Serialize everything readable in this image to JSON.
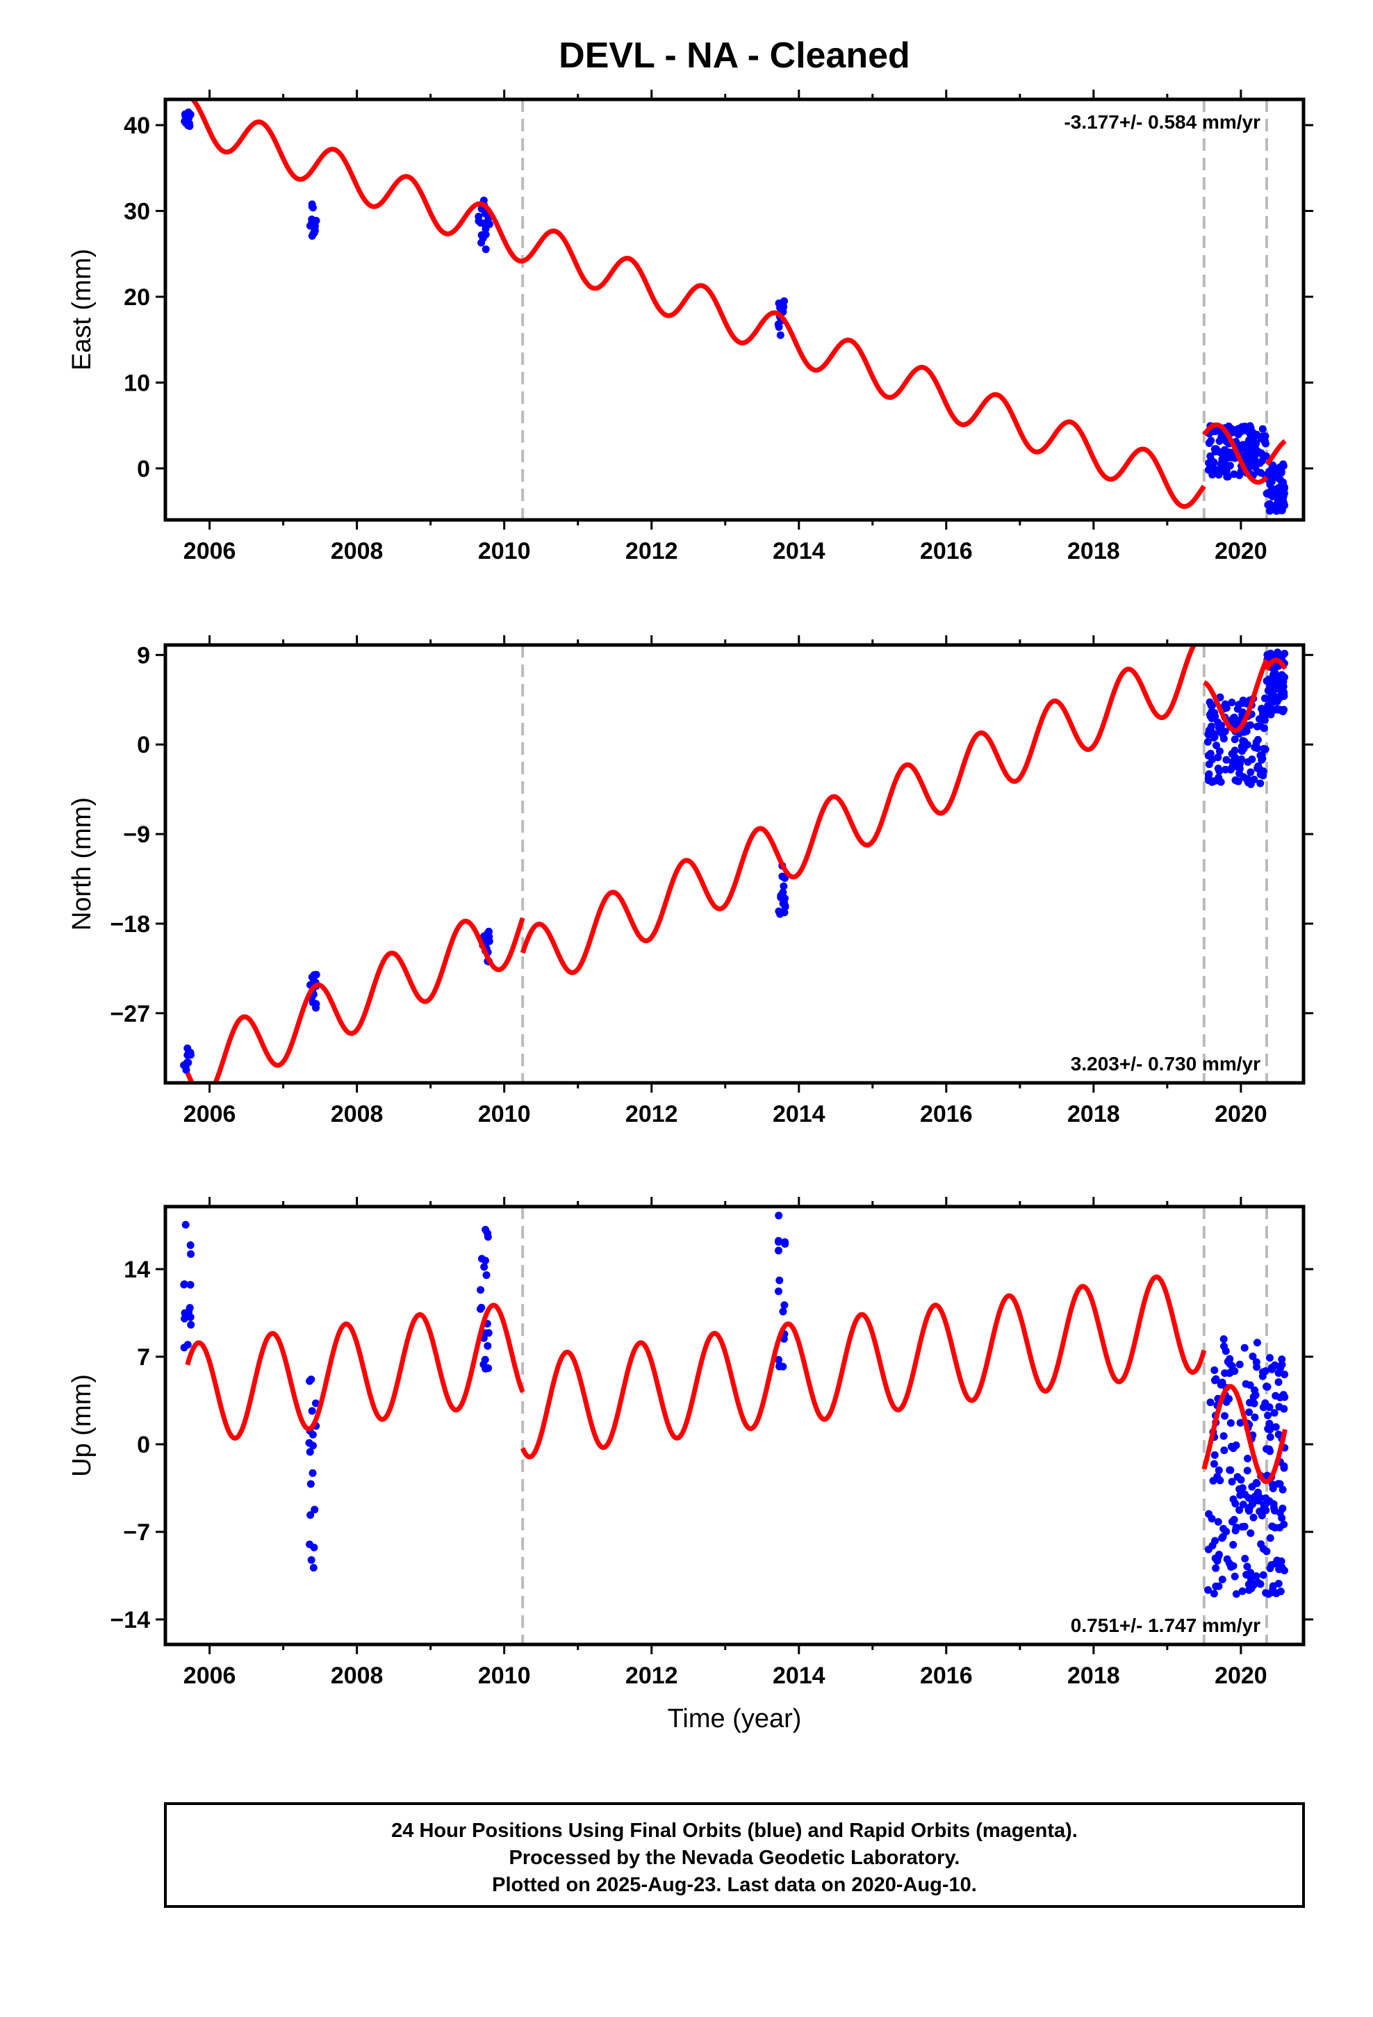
{
  "title": "DEVL  - NA - Cleaned",
  "colors": {
    "final_orbits": "#0000ff",
    "model": "#ff0000",
    "event_line": "#bbbbbb",
    "frame": "#000000"
  },
  "x_axis": {
    "label": "Time (year)",
    "range": [
      2005.4,
      2020.85
    ],
    "ticks": [
      2006,
      2008,
      2010,
      2012,
      2014,
      2016,
      2018,
      2020
    ]
  },
  "event_lines": [
    2010.25,
    2019.5,
    2020.35
  ],
  "footer": {
    "line1": "24 Hour Positions Using Final Orbits (blue) and Rapid Orbits (magenta).",
    "line2": "Processed by the Nevada Geodetic Laboratory.",
    "line3": "Plotted on 2025-Aug-23. Last data on 2020-Aug-10."
  },
  "chart_data": [
    {
      "type": "scatter",
      "component": "east",
      "ylabel": "East (mm)",
      "rate": "-3.177+/- 0.584 mm/yr",
      "rate_position": "top-right",
      "ylim": [
        -6,
        43
      ],
      "yticks": [
        0,
        10,
        20,
        30,
        40
      ],
      "model": {
        "start_value": 41,
        "slope": -3.177,
        "amp": 2.5,
        "phase": 0.25,
        "segments": [
          [
            2005.7,
            2010.25,
            0
          ],
          [
            2010.25,
            2019.5,
            0
          ],
          [
            2019.5,
            2020.35,
            6
          ],
          [
            2020.35,
            2020.6,
            7.5
          ]
        ]
      },
      "clusters": [
        {
          "x": [
            2005.65,
            2005.75
          ],
          "y": [
            39.5,
            41.5
          ],
          "n": 14
        },
        {
          "x": [
            2007.35,
            2007.45
          ],
          "y": [
            27,
            31
          ],
          "n": 16
        },
        {
          "x": [
            2009.65,
            2009.8
          ],
          "y": [
            25.5,
            31.5
          ],
          "n": 18
        },
        {
          "x": [
            2013.72,
            2013.82
          ],
          "y": [
            15.5,
            19.5
          ],
          "n": 16
        },
        {
          "x": [
            2019.55,
            2020.35
          ],
          "y": [
            -1,
            5
          ],
          "n": 150
        },
        {
          "x": [
            2020.35,
            2020.6
          ],
          "y": [
            -5,
            0.5
          ],
          "n": 70
        }
      ]
    },
    {
      "type": "scatter",
      "component": "north",
      "ylabel": "North (mm)",
      "rate": "3.203+/- 0.730 mm/yr",
      "rate_position": "bottom-right",
      "ylim": [
        -34,
        10
      ],
      "yticks": [
        9,
        0,
        -9,
        -18,
        -27
      ],
      "model": {
        "start_value": -33,
        "slope": 3.203,
        "amp": 3.2,
        "phase": 0.5,
        "segments": [
          [
            2005.7,
            2010.25,
            0
          ],
          [
            2010.25,
            2019.5,
            -3.5
          ],
          [
            2019.5,
            2020.35,
            -8
          ],
          [
            2020.35,
            2020.6,
            -9
          ]
        ]
      },
      "clusters": [
        {
          "x": [
            2005.65,
            2005.75
          ],
          "y": [
            -33,
            -30.5
          ],
          "n": 10
        },
        {
          "x": [
            2007.35,
            2007.45
          ],
          "y": [
            -26.5,
            -23
          ],
          "n": 16
        },
        {
          "x": [
            2009.7,
            2009.8
          ],
          "y": [
            -22,
            -18.5
          ],
          "n": 16
        },
        {
          "x": [
            2013.72,
            2013.82
          ],
          "y": [
            -17.5,
            -12
          ],
          "n": 16
        },
        {
          "x": [
            2019.55,
            2020.35
          ],
          "y": [
            -4,
            5
          ],
          "n": 150
        },
        {
          "x": [
            2020.35,
            2020.6
          ],
          "y": [
            3,
            9.5
          ],
          "n": 70
        }
      ]
    },
    {
      "type": "scatter",
      "component": "up",
      "ylabel": "Up (mm)",
      "rate": "0.751+/- 1.747 mm/yr",
      "rate_position": "bottom-right",
      "ylim": [
        -16,
        19
      ],
      "yticks": [
        14,
        7,
        0,
        -7,
        -14
      ],
      "model": {
        "start_value": 4,
        "slope": 0.751,
        "amp": 4,
        "phase": 0.1,
        "segments": [
          [
            2005.7,
            2010.25,
            0
          ],
          [
            2010.25,
            2019.5,
            -4.5
          ],
          [
            2019.5,
            2020.35,
            -14
          ],
          [
            2020.35,
            2020.6,
            -14
          ]
        ]
      },
      "clusters": [
        {
          "x": [
            2005.65,
            2005.75
          ],
          "y": [
            7,
            18
          ],
          "n": 14
        },
        {
          "x": [
            2007.35,
            2007.45
          ],
          "y": [
            -10,
            6.5
          ],
          "n": 18
        },
        {
          "x": [
            2009.65,
            2009.8
          ],
          "y": [
            6,
            17.5
          ],
          "n": 20
        },
        {
          "x": [
            2013.72,
            2013.82
          ],
          "y": [
            6,
            19
          ],
          "n": 16
        },
        {
          "x": [
            2019.55,
            2020.35
          ],
          "y": [
            -12,
            8.5
          ],
          "n": 160
        },
        {
          "x": [
            2020.35,
            2020.6
          ],
          "y": [
            -12,
            7
          ],
          "n": 70
        }
      ]
    }
  ]
}
